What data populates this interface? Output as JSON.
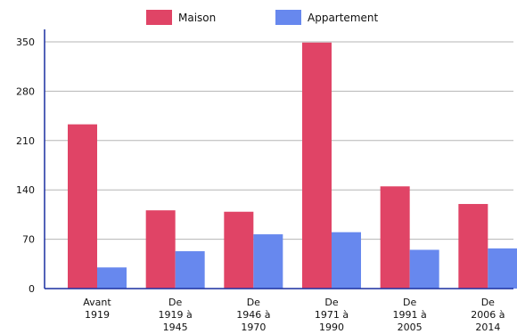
{
  "chart_data": {
    "type": "bar",
    "categories": [
      [
        "Avant",
        "1919"
      ],
      [
        "De",
        "1919 à",
        "1945"
      ],
      [
        "De",
        "1946 à",
        "1970"
      ],
      [
        "De",
        "1971 à",
        "1990"
      ],
      [
        "De",
        "1991 à",
        "2005"
      ],
      [
        "De",
        "2006 à",
        "2014"
      ]
    ],
    "series": [
      {
        "name": "Maison",
        "color": "#e04466",
        "values": [
          233,
          111,
          109,
          349,
          145,
          120
        ]
      },
      {
        "name": "Appartement",
        "color": "#6788ee",
        "values": [
          30,
          53,
          77,
          80,
          55,
          57
        ]
      }
    ],
    "yticks": [
      0,
      70,
      140,
      210,
      280,
      350
    ],
    "ylim": [
      0,
      350
    ],
    "grid": true,
    "legend_position": "top-center",
    "title": "",
    "xlabel": "",
    "ylabel": ""
  }
}
